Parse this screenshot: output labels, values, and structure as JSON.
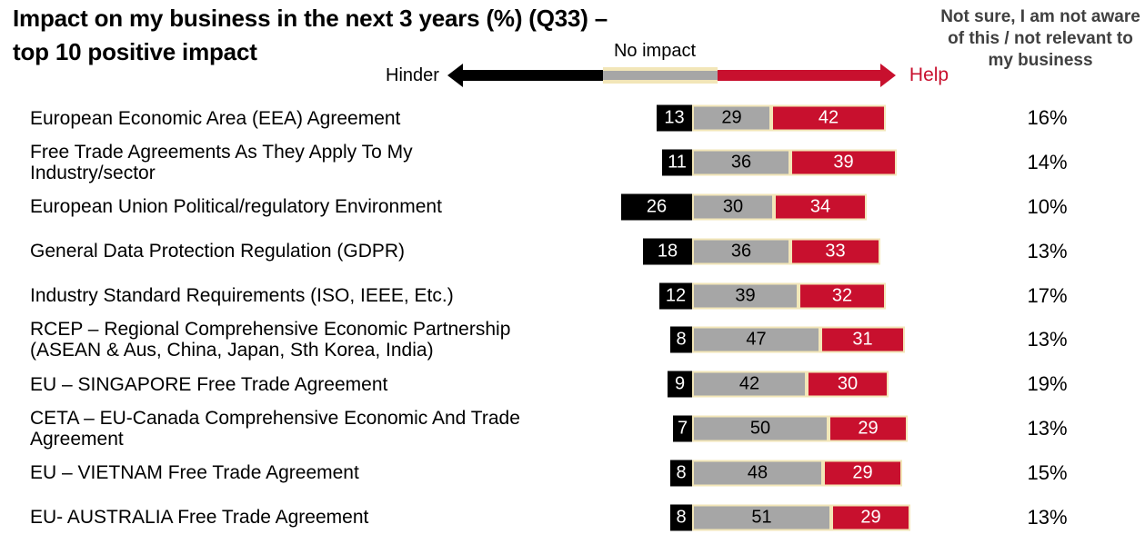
{
  "title_display": "Impact on my business in the next 3 years (%) (Q33) –\ntop 10 positive impact",
  "legend": {
    "hinder": "Hinder",
    "no_impact": "No impact",
    "help": "Help"
  },
  "right_column_header": "Not sure, I am not aware of this / not relevant to my business",
  "colors": {
    "hinder": "#000000",
    "no_impact": "#A6A6A6",
    "help": "#C8102E",
    "segment_border": "#F2E6B8",
    "not_sure_header": "#404040"
  },
  "chart_data": {
    "type": "bar",
    "stacked": true,
    "orientation": "horizontal",
    "title": "Impact on my business in the next 3 years (%) (Q33) – top 10 positive impact",
    "legend_entries": [
      "Hinder",
      "No impact",
      "Help"
    ],
    "legend_position": "top",
    "axes": "hidden",
    "alignment": "bars aligned at hinder/no-impact boundary",
    "categories": [
      "European Economic Area (EEA) Agreement",
      "Free Trade Agreements As They Apply To My Industry/sector",
      "European Union Political/regulatory Environment",
      "General Data Protection Regulation (GDPR)",
      "Industry Standard Requirements (ISO, IEEE, Etc.)",
      "RCEP – Regional Comprehensive Economic Partnership (ASEAN & Aus, China, Japan, Sth Korea, India)",
      "EU – SINGAPORE Free Trade Agreement",
      "CETA – EU-Canada Comprehensive Economic And Trade Agreement",
      "EU – VIETNAM Free Trade Agreement",
      "EU- AUSTRALIA Free Trade Agreement"
    ],
    "series": [
      {
        "name": "Hinder",
        "values": [
          13,
          11,
          26,
          18,
          12,
          8,
          9,
          7,
          8,
          8
        ]
      },
      {
        "name": "No impact",
        "values": [
          29,
          36,
          30,
          36,
          39,
          47,
          42,
          50,
          48,
          51
        ]
      },
      {
        "name": "Help",
        "values": [
          42,
          39,
          34,
          33,
          32,
          31,
          30,
          29,
          29,
          29
        ]
      }
    ],
    "not_sure_values": [
      "16%",
      "14%",
      "10%",
      "13%",
      "17%",
      "13%",
      "19%",
      "13%",
      "15%",
      "13%"
    ]
  }
}
